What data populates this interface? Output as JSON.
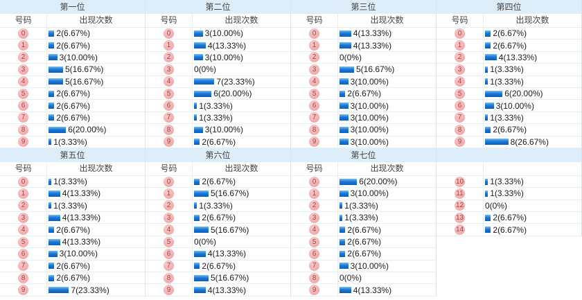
{
  "labels": {
    "number_header": "号码",
    "count_header": "出现次数"
  },
  "colors": {
    "header_band": "#ddeefa",
    "row_border": "#e6eff6",
    "panel_border": "#d8e6f1",
    "bar_top": "#74bcee",
    "bar_mid": "#1d78d2",
    "bar_bottom": "#0a5ec2",
    "ball_light": "#fbc9c9",
    "ball_bg": "#ef9c9c",
    "ball_text": "#9b4444",
    "value_text": "#1b1b1b",
    "title_text": "#444444"
  },
  "panels": [
    {
      "title": "第一位",
      "show_headers": true,
      "rows": [
        {
          "num": "0",
          "count": 2,
          "text": "2(6.67%)"
        },
        {
          "num": "1",
          "count": 2,
          "text": "2(6.67%)"
        },
        {
          "num": "2",
          "count": 3,
          "text": "3(10.00%)"
        },
        {
          "num": "3",
          "count": 5,
          "text": "5(16.67%)"
        },
        {
          "num": "4",
          "count": 5,
          "text": "5(16.67%)"
        },
        {
          "num": "5",
          "count": 2,
          "text": "2(6.67%)"
        },
        {
          "num": "6",
          "count": 2,
          "text": "2(6.67%)"
        },
        {
          "num": "7",
          "count": 2,
          "text": "2(6.67%)"
        },
        {
          "num": "8",
          "count": 6,
          "text": "6(20.00%)"
        },
        {
          "num": "9",
          "count": 1,
          "text": "1(3.33%)"
        }
      ]
    },
    {
      "title": "第二位",
      "show_headers": true,
      "rows": [
        {
          "num": "0",
          "count": 3,
          "text": "3(10.00%)"
        },
        {
          "num": "1",
          "count": 4,
          "text": "4(13.33%)"
        },
        {
          "num": "2",
          "count": 3,
          "text": "3(10.00%)"
        },
        {
          "num": "3",
          "count": 0,
          "text": "0(0%)"
        },
        {
          "num": "4",
          "count": 7,
          "text": "7(23.33%)"
        },
        {
          "num": "5",
          "count": 6,
          "text": "6(20.00%)"
        },
        {
          "num": "6",
          "count": 1,
          "text": "1(3.33%)"
        },
        {
          "num": "7",
          "count": 1,
          "text": "1(3.33%)"
        },
        {
          "num": "8",
          "count": 3,
          "text": "3(10.00%)"
        },
        {
          "num": "9",
          "count": 2,
          "text": "2(6.67%)"
        }
      ]
    },
    {
      "title": "第三位",
      "show_headers": true,
      "rows": [
        {
          "num": "0",
          "count": 4,
          "text": "4(13.33%)"
        },
        {
          "num": "1",
          "count": 4,
          "text": "4(13.33%)"
        },
        {
          "num": "2",
          "count": 0,
          "text": "0(0%)"
        },
        {
          "num": "3",
          "count": 5,
          "text": "5(16.67%)"
        },
        {
          "num": "4",
          "count": 3,
          "text": "3(10.00%)"
        },
        {
          "num": "5",
          "count": 2,
          "text": "2(6.67%)"
        },
        {
          "num": "6",
          "count": 3,
          "text": "3(10.00%)"
        },
        {
          "num": "7",
          "count": 3,
          "text": "3(10.00%)"
        },
        {
          "num": "8",
          "count": 3,
          "text": "3(10.00%)"
        },
        {
          "num": "9",
          "count": 3,
          "text": "3(10.00%)"
        }
      ]
    },
    {
      "title": "第四位",
      "show_headers": true,
      "rows": [
        {
          "num": "0",
          "count": 2,
          "text": "2(6.67%)"
        },
        {
          "num": "1",
          "count": 2,
          "text": "2(6.67%)"
        },
        {
          "num": "2",
          "count": 4,
          "text": "4(13.33%)"
        },
        {
          "num": "3",
          "count": 1,
          "text": "1(3.33%)"
        },
        {
          "num": "4",
          "count": 1,
          "text": "1(3.33%)"
        },
        {
          "num": "5",
          "count": 6,
          "text": "6(20.00%)"
        },
        {
          "num": "6",
          "count": 3,
          "text": "3(10.00%)"
        },
        {
          "num": "7",
          "count": 1,
          "text": "1(3.33%)"
        },
        {
          "num": "8",
          "count": 2,
          "text": "2(6.67%)"
        },
        {
          "num": "9",
          "count": 8,
          "text": "8(26.67%)"
        }
      ]
    },
    {
      "title": "第五位",
      "show_headers": true,
      "rows": [
        {
          "num": "0",
          "count": 1,
          "text": "1(3.33%)"
        },
        {
          "num": "1",
          "count": 4,
          "text": "4(13.33%)"
        },
        {
          "num": "2",
          "count": 1,
          "text": "1(3.33%)"
        },
        {
          "num": "3",
          "count": 4,
          "text": "4(13.33%)"
        },
        {
          "num": "4",
          "count": 2,
          "text": "2(6.67%)"
        },
        {
          "num": "5",
          "count": 4,
          "text": "4(13.33%)"
        },
        {
          "num": "6",
          "count": 3,
          "text": "3(10.00%)"
        },
        {
          "num": "7",
          "count": 2,
          "text": "2(6.67%)"
        },
        {
          "num": "8",
          "count": 2,
          "text": "2(6.67%)"
        },
        {
          "num": "9",
          "count": 7,
          "text": "7(23.33%)"
        }
      ]
    },
    {
      "title": "第六位",
      "show_headers": true,
      "rows": [
        {
          "num": "0",
          "count": 2,
          "text": "2(6.67%)"
        },
        {
          "num": "1",
          "count": 5,
          "text": "5(16.67%)"
        },
        {
          "num": "2",
          "count": 1,
          "text": "1(3.33%)"
        },
        {
          "num": "3",
          "count": 2,
          "text": "2(6.67%)"
        },
        {
          "num": "4",
          "count": 5,
          "text": "5(16.67%)"
        },
        {
          "num": "5",
          "count": 0,
          "text": "0(0%)"
        },
        {
          "num": "6",
          "count": 4,
          "text": "4(13.33%)"
        },
        {
          "num": "7",
          "count": 2,
          "text": "2(6.67%)"
        },
        {
          "num": "8",
          "count": 5,
          "text": "5(16.67%)"
        },
        {
          "num": "9",
          "count": 4,
          "text": "4(13.33%)"
        }
      ]
    },
    {
      "title": "第七位",
      "show_headers": true,
      "rows": [
        {
          "num": "0",
          "count": 6,
          "text": "6(20.00%)"
        },
        {
          "num": "1",
          "count": 3,
          "text": "3(10.00%)"
        },
        {
          "num": "2",
          "count": 1,
          "text": "1(3.33%)"
        },
        {
          "num": "3",
          "count": 1,
          "text": "1(3.33%)"
        },
        {
          "num": "4",
          "count": 2,
          "text": "2(6.67%)"
        },
        {
          "num": "5",
          "count": 2,
          "text": "2(6.67%)"
        },
        {
          "num": "6",
          "count": 2,
          "text": "2(6.67%)"
        },
        {
          "num": "7",
          "count": 3,
          "text": "3(10.00%)"
        },
        {
          "num": "8",
          "count": 0,
          "text": "0(0%)"
        },
        {
          "num": "9",
          "count": 4,
          "text": "4(13.33%)"
        }
      ]
    },
    {
      "title": "",
      "show_headers": false,
      "rows": [
        {
          "num": "10",
          "count": 1,
          "text": "1(3.33%)"
        },
        {
          "num": "11",
          "count": 1,
          "text": "1(3.33%)"
        },
        {
          "num": "12",
          "count": 0,
          "text": "0(0%)"
        },
        {
          "num": "13",
          "count": 2,
          "text": "2(6.67%)"
        },
        {
          "num": "14",
          "count": 2,
          "text": "2(6.67%)"
        }
      ]
    }
  ],
  "chart_data": [
    {
      "type": "bar",
      "title": "第一位",
      "categories": [
        "0",
        "1",
        "2",
        "3",
        "4",
        "5",
        "6",
        "7",
        "8",
        "9"
      ],
      "values": [
        2,
        2,
        3,
        5,
        5,
        2,
        2,
        2,
        6,
        1
      ],
      "percent_labels": [
        "6.67%",
        "6.67%",
        "10.00%",
        "16.67%",
        "16.67%",
        "6.67%",
        "6.67%",
        "6.67%",
        "20.00%",
        "3.33%"
      ],
      "xlabel": "号码",
      "ylabel": "出现次数",
      "legend": false,
      "grid": false
    },
    {
      "type": "bar",
      "title": "第二位",
      "categories": [
        "0",
        "1",
        "2",
        "3",
        "4",
        "5",
        "6",
        "7",
        "8",
        "9"
      ],
      "values": [
        3,
        4,
        3,
        0,
        7,
        6,
        1,
        1,
        3,
        2
      ],
      "percent_labels": [
        "10.00%",
        "13.33%",
        "10.00%",
        "0%",
        "23.33%",
        "20.00%",
        "3.33%",
        "3.33%",
        "10.00%",
        "6.67%"
      ],
      "xlabel": "号码",
      "ylabel": "出现次数",
      "legend": false,
      "grid": false
    },
    {
      "type": "bar",
      "title": "第三位",
      "categories": [
        "0",
        "1",
        "2",
        "3",
        "4",
        "5",
        "6",
        "7",
        "8",
        "9"
      ],
      "values": [
        4,
        4,
        0,
        5,
        3,
        2,
        3,
        3,
        3,
        3
      ],
      "percent_labels": [
        "13.33%",
        "13.33%",
        "0%",
        "16.67%",
        "10.00%",
        "6.67%",
        "10.00%",
        "10.00%",
        "10.00%",
        "10.00%"
      ],
      "xlabel": "号码",
      "ylabel": "出现次数",
      "legend": false,
      "grid": false
    },
    {
      "type": "bar",
      "title": "第四位",
      "categories": [
        "0",
        "1",
        "2",
        "3",
        "4",
        "5",
        "6",
        "7",
        "8",
        "9"
      ],
      "values": [
        2,
        2,
        4,
        1,
        1,
        6,
        3,
        1,
        2,
        8
      ],
      "percent_labels": [
        "6.67%",
        "6.67%",
        "13.33%",
        "3.33%",
        "3.33%",
        "20.00%",
        "10.00%",
        "3.33%",
        "6.67%",
        "26.67%"
      ],
      "xlabel": "号码",
      "ylabel": "出现次数",
      "legend": false,
      "grid": false
    },
    {
      "type": "bar",
      "title": "第五位",
      "categories": [
        "0",
        "1",
        "2",
        "3",
        "4",
        "5",
        "6",
        "7",
        "8",
        "9"
      ],
      "values": [
        1,
        4,
        1,
        4,
        2,
        4,
        3,
        2,
        2,
        7
      ],
      "percent_labels": [
        "3.33%",
        "13.33%",
        "3.33%",
        "13.33%",
        "6.67%",
        "13.33%",
        "10.00%",
        "6.67%",
        "6.67%",
        "23.33%"
      ],
      "xlabel": "号码",
      "ylabel": "出现次数",
      "legend": false,
      "grid": false
    },
    {
      "type": "bar",
      "title": "第六位",
      "categories": [
        "0",
        "1",
        "2",
        "3",
        "4",
        "5",
        "6",
        "7",
        "8",
        "9"
      ],
      "values": [
        2,
        5,
        1,
        2,
        5,
        0,
        4,
        2,
        5,
        4
      ],
      "percent_labels": [
        "6.67%",
        "16.67%",
        "3.33%",
        "6.67%",
        "16.67%",
        "0%",
        "13.33%",
        "6.67%",
        "16.67%",
        "13.33%"
      ],
      "xlabel": "号码",
      "ylabel": "出现次数",
      "legend": false,
      "grid": false
    },
    {
      "type": "bar",
      "title": "第七位",
      "categories": [
        "0",
        "1",
        "2",
        "3",
        "4",
        "5",
        "6",
        "7",
        "8",
        "9"
      ],
      "values": [
        6,
        3,
        1,
        1,
        2,
        2,
        2,
        3,
        0,
        4
      ],
      "percent_labels": [
        "20.00%",
        "10.00%",
        "3.33%",
        "3.33%",
        "6.67%",
        "6.67%",
        "6.67%",
        "10.00%",
        "0%",
        "13.33%"
      ],
      "xlabel": "号码",
      "ylabel": "出现次数",
      "legend": false,
      "grid": false
    },
    {
      "type": "bar",
      "title": "",
      "categories": [
        "10",
        "11",
        "12",
        "13",
        "14"
      ],
      "values": [
        1,
        1,
        0,
        2,
        2
      ],
      "percent_labels": [
        "3.33%",
        "3.33%",
        "0%",
        "6.67%",
        "6.67%"
      ],
      "xlabel": "号码",
      "ylabel": "出现次数",
      "legend": false,
      "grid": false
    }
  ]
}
